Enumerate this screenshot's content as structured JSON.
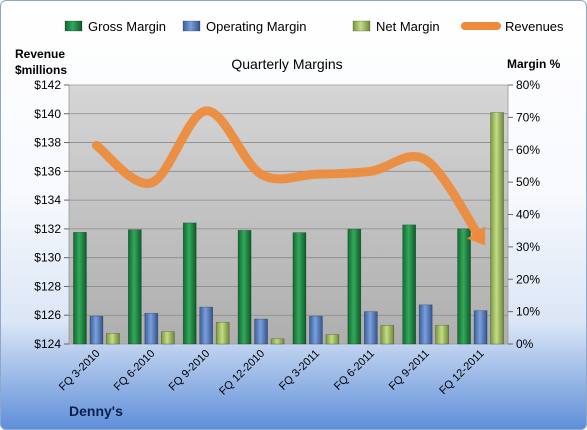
{
  "brand": "Denny's",
  "chart_data": {
    "type": "bar",
    "title": "Quarterly Margins",
    "categories": [
      "FQ 3-2010",
      "FQ 6-2010",
      "FQ 9-2010",
      "FQ 12-2010",
      "FQ 3-2011",
      "FQ 6-2011",
      "FQ 9-2011",
      "FQ 12-2011"
    ],
    "left_axis_label": [
      "Revenue",
      "$millions"
    ],
    "right_axis_label": "Margin %",
    "left_ticks": [
      "$124",
      "$126",
      "$128",
      "$130",
      "$132",
      "$134",
      "$136",
      "$138",
      "$140",
      "$142"
    ],
    "right_ticks": [
      "0%",
      "10%",
      "20%",
      "30%",
      "40%",
      "50%",
      "60%",
      "70%",
      "80%"
    ],
    "left_range": [
      124,
      142
    ],
    "right_range": [
      0,
      80
    ],
    "grid": true,
    "legend_position": "top",
    "series": [
      {
        "name": "Gross Margin",
        "kind": "bar",
        "axis": "right",
        "color": "#1f8a43",
        "values": [
          34.5,
          35.3,
          37.4,
          35.1,
          34.4,
          35.5,
          36.8,
          35.6
        ]
      },
      {
        "name": "Operating Margin",
        "kind": "bar",
        "axis": "right",
        "color": "#4f78bf",
        "values": [
          8.6,
          9.5,
          11.4,
          7.7,
          8.6,
          10.0,
          12.1,
          10.3
        ]
      },
      {
        "name": "Net Margin",
        "kind": "bar",
        "axis": "right",
        "color": "#9bb85a",
        "values": [
          3.3,
          3.8,
          6.7,
          1.6,
          2.9,
          5.7,
          5.8,
          71.5
        ]
      },
      {
        "name": "Revenues",
        "kind": "line",
        "axis": "left",
        "color": "#ee8a3a",
        "values": [
          137.8,
          135.2,
          140.2,
          135.8,
          135.8,
          136.0,
          136.8,
          131.3
        ]
      }
    ]
  }
}
